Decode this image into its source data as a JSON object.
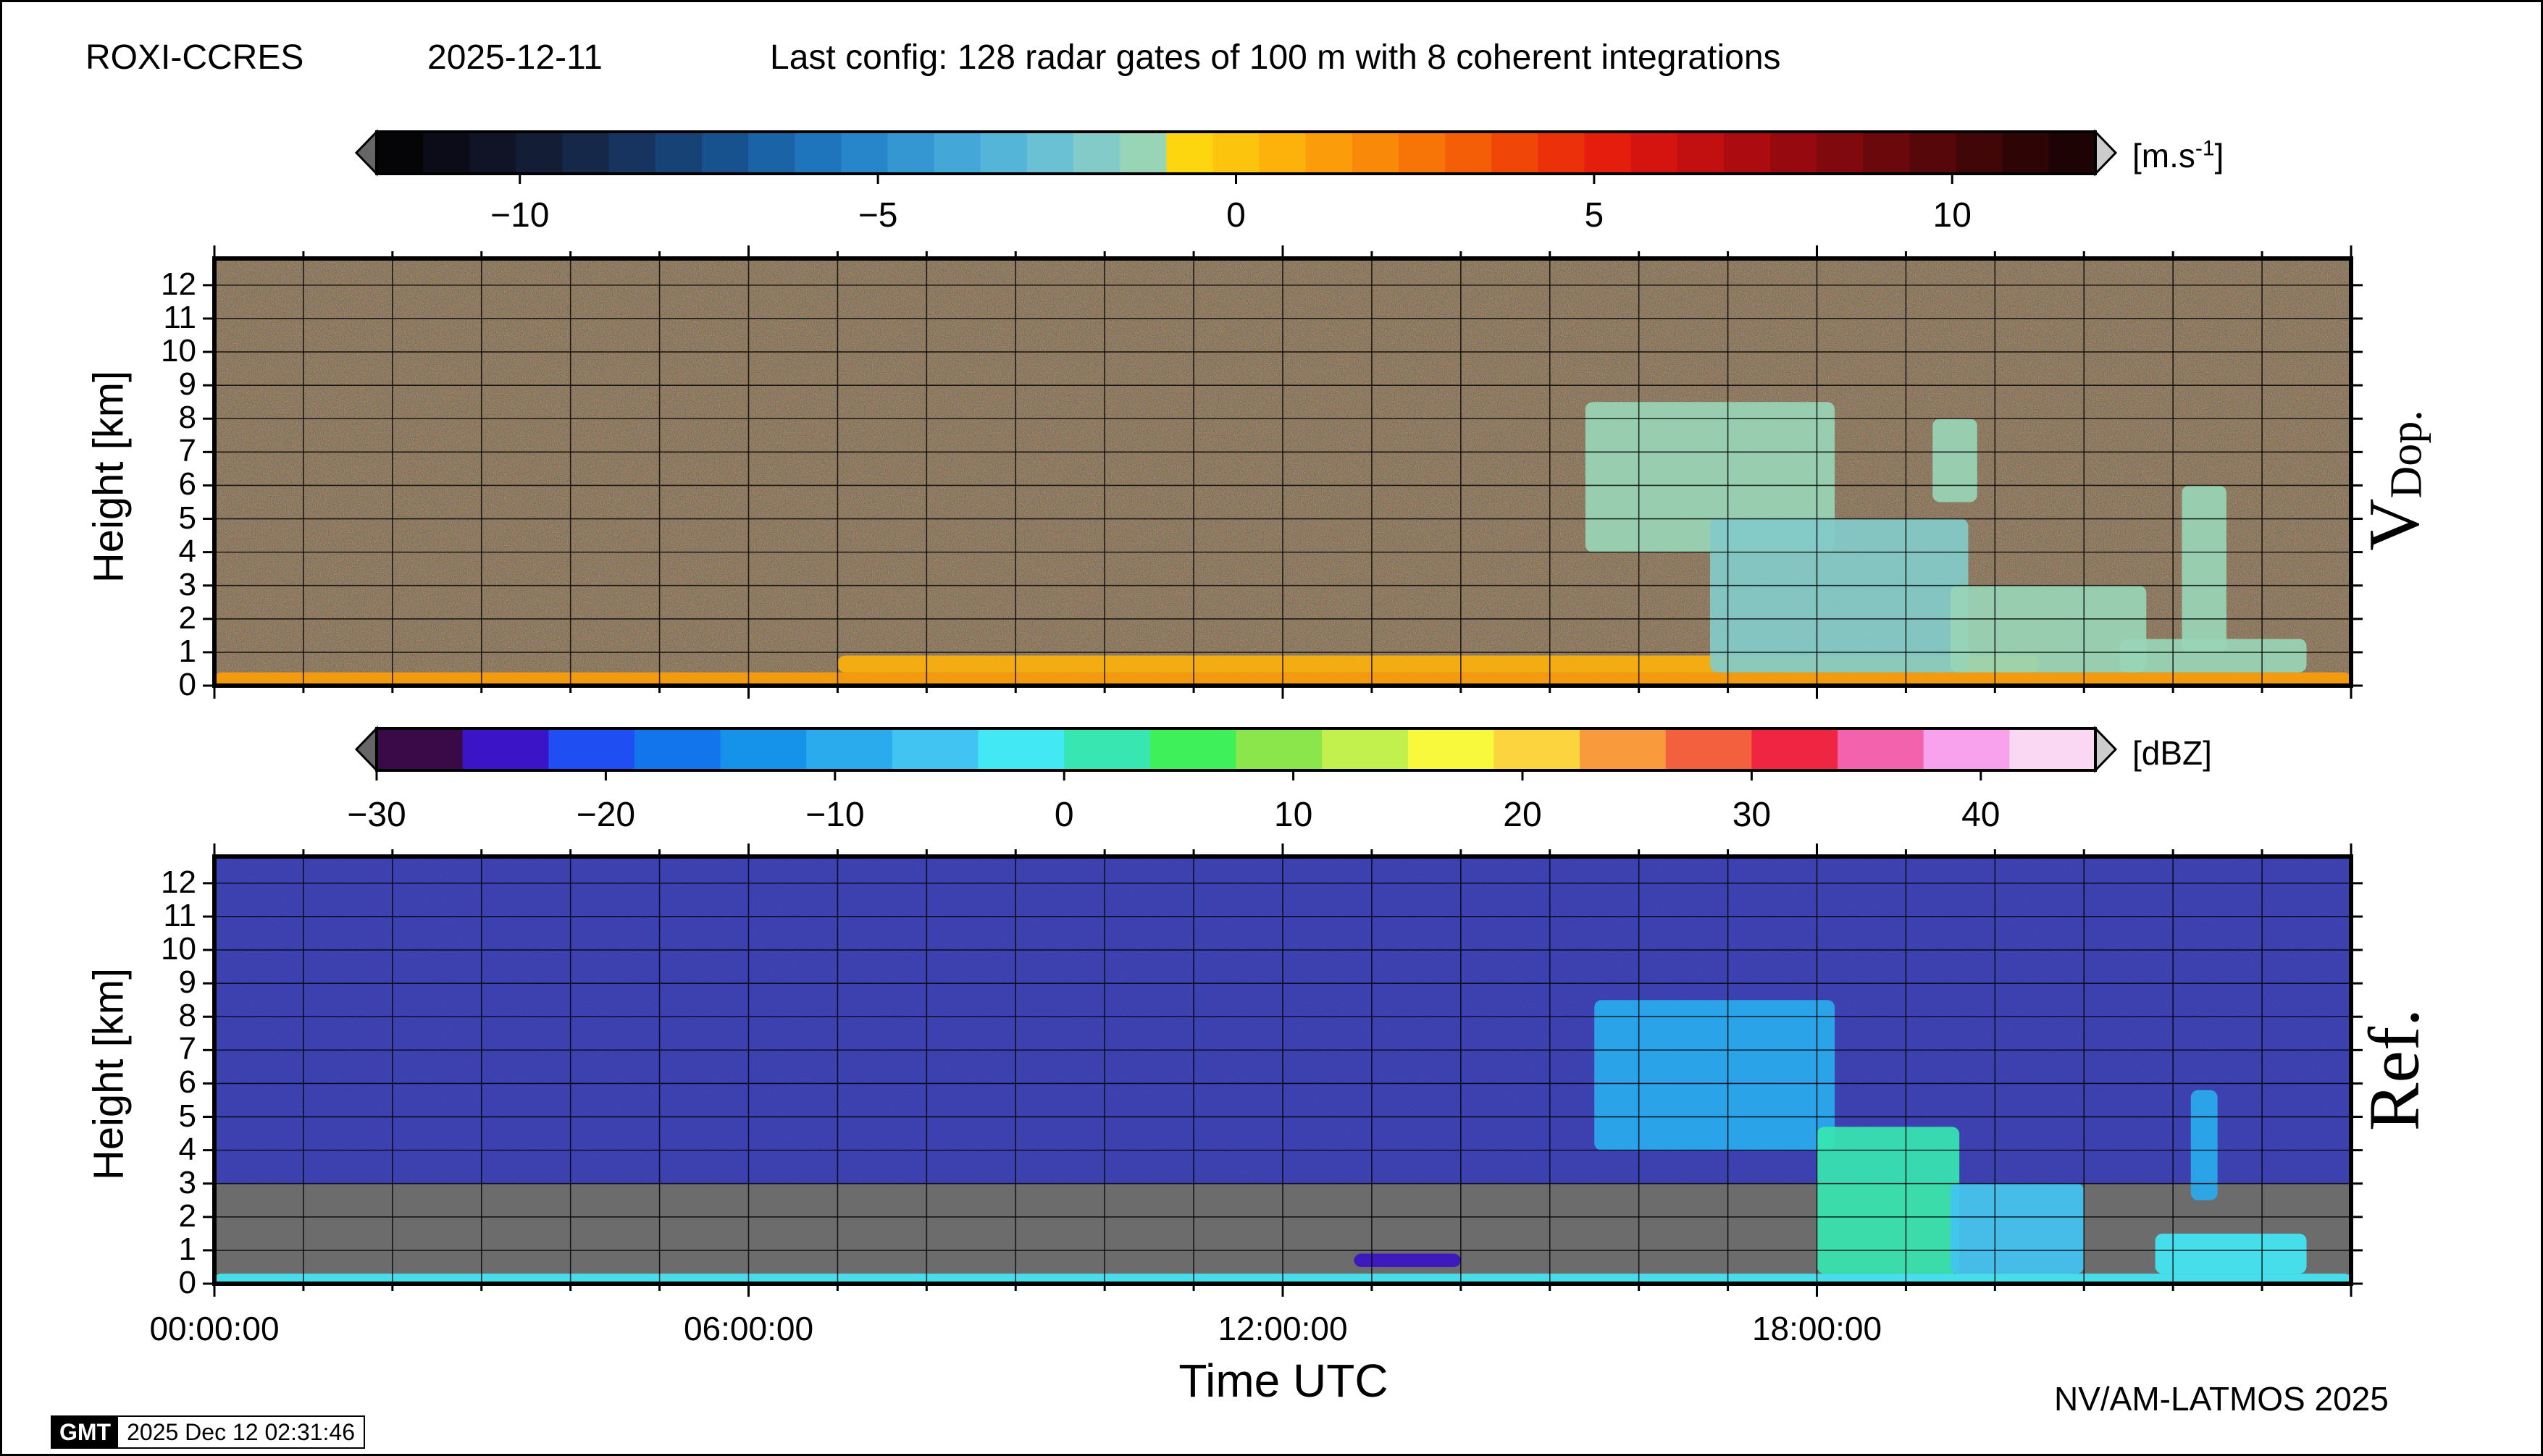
{
  "header": {
    "station": "ROXI-CCRES",
    "date": "2025-12-11",
    "config": "Last config: 128 radar gates of 100 m with 8 coherent integrations"
  },
  "footer": {
    "credit": "NV/AM-LATMOS 2025",
    "gmt_logo": "GMT",
    "gmt_timestamp": "2025 Dec 12 02:31:46"
  },
  "colorbars": {
    "velocity": {
      "unit_prefix": "[m.s",
      "unit_exp": "-1",
      "unit_suffix": "]",
      "range": [
        -12,
        12
      ],
      "ticks": [
        "−10",
        "−5",
        "0",
        "5",
        "10"
      ],
      "tick_values": [
        -10,
        -5,
        0,
        5,
        10
      ],
      "colors": [
        "#050508",
        "#0b0c18",
        "#101426",
        "#131d36",
        "#15284a",
        "#16345f",
        "#174276",
        "#18528e",
        "#1a63a6",
        "#1e75bb",
        "#2786c9",
        "#3497d2",
        "#43a7d7",
        "#55b5d8",
        "#6bc1d4",
        "#82cbc9",
        "#98d5b6",
        "#fdd60f",
        "#fdc40d",
        "#fcb10b",
        "#fb9d0a",
        "#f98908",
        "#f77407",
        "#f45e07",
        "#f04708",
        "#ec300a",
        "#e51d0c",
        "#d5140f",
        "#c20f10",
        "#ac0b10",
        "#960a0f",
        "#80090d",
        "#6a080b",
        "#550709",
        "#410607",
        "#2e0405",
        "#1d0303"
      ]
    },
    "reflectivity": {
      "unit": "[dBZ]",
      "range": [
        -30,
        45
      ],
      "ticks": [
        "−30",
        "−20",
        "−10",
        "0",
        "10",
        "20",
        "30",
        "40"
      ],
      "tick_values": [
        -30,
        -20,
        -10,
        0,
        10,
        20,
        30,
        40
      ],
      "colors": [
        "#3a0a48",
        "#3a14c6",
        "#1f4ff2",
        "#1275ec",
        "#1592ea",
        "#2aabee",
        "#42c4f3",
        "#43e8f5",
        "#37e6b0",
        "#3ef05a",
        "#8ae64b",
        "#c2f04c",
        "#f8f93d",
        "#fcd53e",
        "#f99a3c",
        "#f3603e",
        "#ef2542",
        "#f363ad",
        "#f8a1ec",
        "#fad8f4"
      ]
    }
  },
  "chart_data": [
    {
      "type": "heatmap",
      "name": "Doppler velocity",
      "side_label": "V",
      "side_label_sub": "Dop.",
      "ylabel": "Height [km]",
      "xlabel": "Time UTC",
      "y_ticks": [
        0,
        1,
        2,
        3,
        4,
        5,
        6,
        7,
        8,
        9,
        10,
        11,
        12
      ],
      "ylim": [
        0,
        12.8
      ],
      "xlim": [
        "00:00:00",
        "24:00:00"
      ],
      "x_ticks": [
        "00:00:00",
        "06:00:00",
        "12:00:00",
        "18:00:00"
      ],
      "grid": true,
      "background": "noise (random velocities, no signal)",
      "features": [
        {
          "kind": "surface layer",
          "t_start": 0.0,
          "t_end": 24.0,
          "h_bottom": 0.0,
          "h_top": 0.4,
          "value_ms": 1.5
        },
        {
          "kind": "low-level echo",
          "t_start": 7.0,
          "t_end": 20.5,
          "h_bottom": 0.4,
          "h_top": 0.9,
          "value_ms": 0.5
        },
        {
          "kind": "precipitation",
          "t_start": 15.4,
          "t_end": 18.2,
          "h_bottom": 4.0,
          "h_top": 8.5,
          "value_ms": -1.5
        },
        {
          "kind": "precipitation",
          "t_start": 16.8,
          "t_end": 19.7,
          "h_bottom": 0.4,
          "h_top": 5.0,
          "value_ms": -2.0
        },
        {
          "kind": "precipitation",
          "t_start": 19.5,
          "t_end": 21.7,
          "h_bottom": 0.4,
          "h_top": 3.0,
          "value_ms": -1.0
        },
        {
          "kind": "precipitation",
          "t_start": 19.3,
          "t_end": 19.8,
          "h_bottom": 5.5,
          "h_top": 8.0,
          "value_ms": -1.0
        },
        {
          "kind": "precipitation",
          "t_start": 22.1,
          "t_end": 22.6,
          "h_bottom": 1.0,
          "h_top": 6.0,
          "value_ms": -1.0
        },
        {
          "kind": "precipitation",
          "t_start": 21.4,
          "t_end": 23.5,
          "h_bottom": 0.4,
          "h_top": 1.4,
          "value_ms": -1.5
        }
      ]
    },
    {
      "type": "heatmap",
      "name": "Reflectivity",
      "side_label": "Ref.",
      "ylabel": "Height [km]",
      "xlabel": "Time UTC",
      "y_ticks": [
        0,
        1,
        2,
        3,
        4,
        5,
        6,
        7,
        8,
        9,
        10,
        11,
        12
      ],
      "ylim": [
        0,
        12.8
      ],
      "xlim": [
        "00:00:00",
        "24:00:00"
      ],
      "x_ticks": [
        "00:00:00",
        "06:00:00",
        "12:00:00",
        "18:00:00"
      ],
      "grid": true,
      "background": "noise about -22 dBZ aloft, no data (grey) below about 3 km",
      "features": [
        {
          "kind": "surface layer",
          "t_start": 0.0,
          "t_end": 24.0,
          "h_bottom": 0.0,
          "h_top": 0.3,
          "value_dbz": -2
        },
        {
          "kind": "low-level echo",
          "t_start": 12.8,
          "t_end": 14.0,
          "h_bottom": 0.5,
          "h_top": 0.9,
          "value_dbz": -25
        },
        {
          "kind": "precipitation",
          "t_start": 15.5,
          "t_end": 18.2,
          "h_bottom": 4.0,
          "h_top": 8.5,
          "value_dbz": -8
        },
        {
          "kind": "precipitation",
          "t_start": 18.0,
          "t_end": 19.6,
          "h_bottom": 0.3,
          "h_top": 4.7,
          "value_dbz": 0
        },
        {
          "kind": "precipitation",
          "t_start": 19.5,
          "t_end": 21.0,
          "h_bottom": 0.3,
          "h_top": 3.0,
          "value_dbz": -5
        },
        {
          "kind": "precipitation",
          "t_start": 21.8,
          "t_end": 23.5,
          "h_bottom": 0.3,
          "h_top": 1.5,
          "value_dbz": -3
        },
        {
          "kind": "precipitation",
          "t_start": 22.2,
          "t_end": 22.5,
          "h_bottom": 2.5,
          "h_top": 5.8,
          "value_dbz": -10
        }
      ]
    }
  ]
}
